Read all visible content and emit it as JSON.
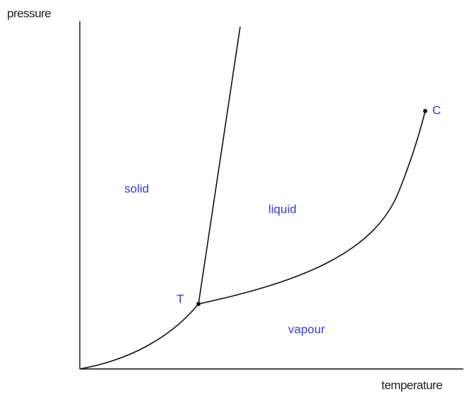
{
  "axes": {
    "y_label": "pressure",
    "x_label": "temperature"
  },
  "regions": {
    "solid": "solid",
    "liquid": "liquid",
    "vapour": "vapour"
  },
  "points": {
    "triple": "T",
    "critical": "C"
  }
}
